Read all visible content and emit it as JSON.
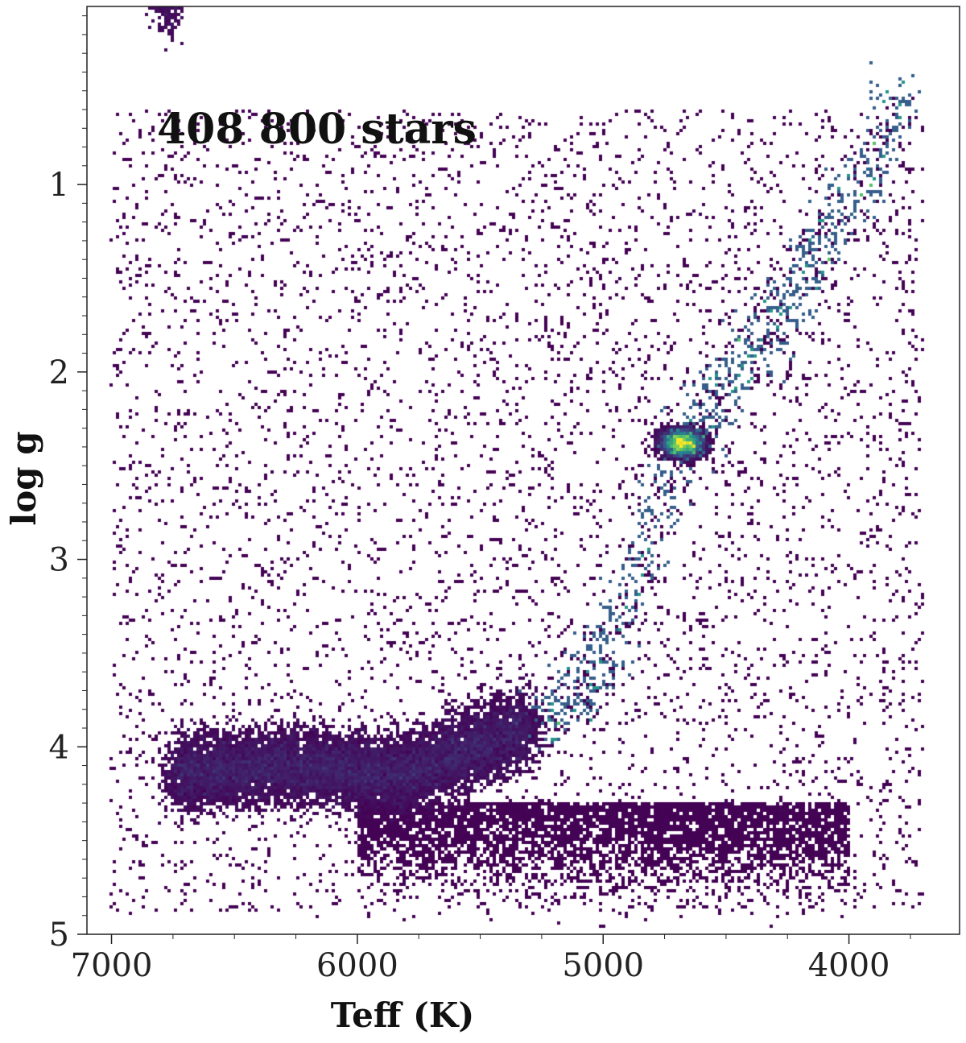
{
  "chart_data": {
    "type": "heatmap",
    "title": "",
    "annotation": "408 800 stars",
    "xlabel": "Teff (K)",
    "ylabel": "log g",
    "x_inverted": true,
    "y_inverted": true,
    "xlim": [
      7100,
      3550
    ],
    "ylim": [
      0.05,
      5.0
    ],
    "xticks": [
      7000,
      6000,
      5000,
      4000
    ],
    "xtick_labels": [
      "7000",
      "6000",
      "5000",
      "4000"
    ],
    "yticks": [
      1,
      2,
      3,
      4,
      5
    ],
    "ytick_labels": [
      "1",
      "2",
      "3",
      "4",
      "5"
    ],
    "colormap": "viridis",
    "colors": {
      "low": "#440154",
      "mid_low": "#3b528b",
      "mid": "#21908d",
      "mid_high": "#5dc962",
      "high": "#fde725"
    },
    "density_regions": [
      {
        "name": "main sequence / turnoff",
        "teff": [
          6800,
          5300
        ],
        "logg": [
          3.7,
          4.6
        ],
        "relative_density": "low"
      },
      {
        "name": "subgiant branch",
        "teff": [
          5300,
          4750
        ],
        "logg": [
          3.0,
          3.8
        ],
        "relative_density": "low"
      },
      {
        "name": "red clump",
        "teff": [
          4800,
          4500
        ],
        "logg": [
          2.25,
          2.5
        ],
        "relative_density": "peak"
      },
      {
        "name": "red giant branch",
        "teff": [
          4900,
          3750
        ],
        "logg": [
          0.4,
          2.9
        ],
        "relative_density": "medium"
      }
    ],
    "ridge_points": [
      {
        "teff": 6750,
        "logg": 4.15
      },
      {
        "teff": 6300,
        "logg": 4.1
      },
      {
        "teff": 5800,
        "logg": 4.15
      },
      {
        "teff": 5400,
        "logg": 3.95
      },
      {
        "teff": 5050,
        "logg": 3.7
      },
      {
        "teff": 4900,
        "logg": 3.2
      },
      {
        "teff": 4780,
        "logg": 2.7
      },
      {
        "teff": 4650,
        "logg": 2.35
      },
      {
        "teff": 4450,
        "logg": 2.0
      },
      {
        "teff": 4250,
        "logg": 1.6
      },
      {
        "teff": 4000,
        "logg": 1.1
      },
      {
        "teff": 3780,
        "logg": 0.5
      }
    ]
  }
}
